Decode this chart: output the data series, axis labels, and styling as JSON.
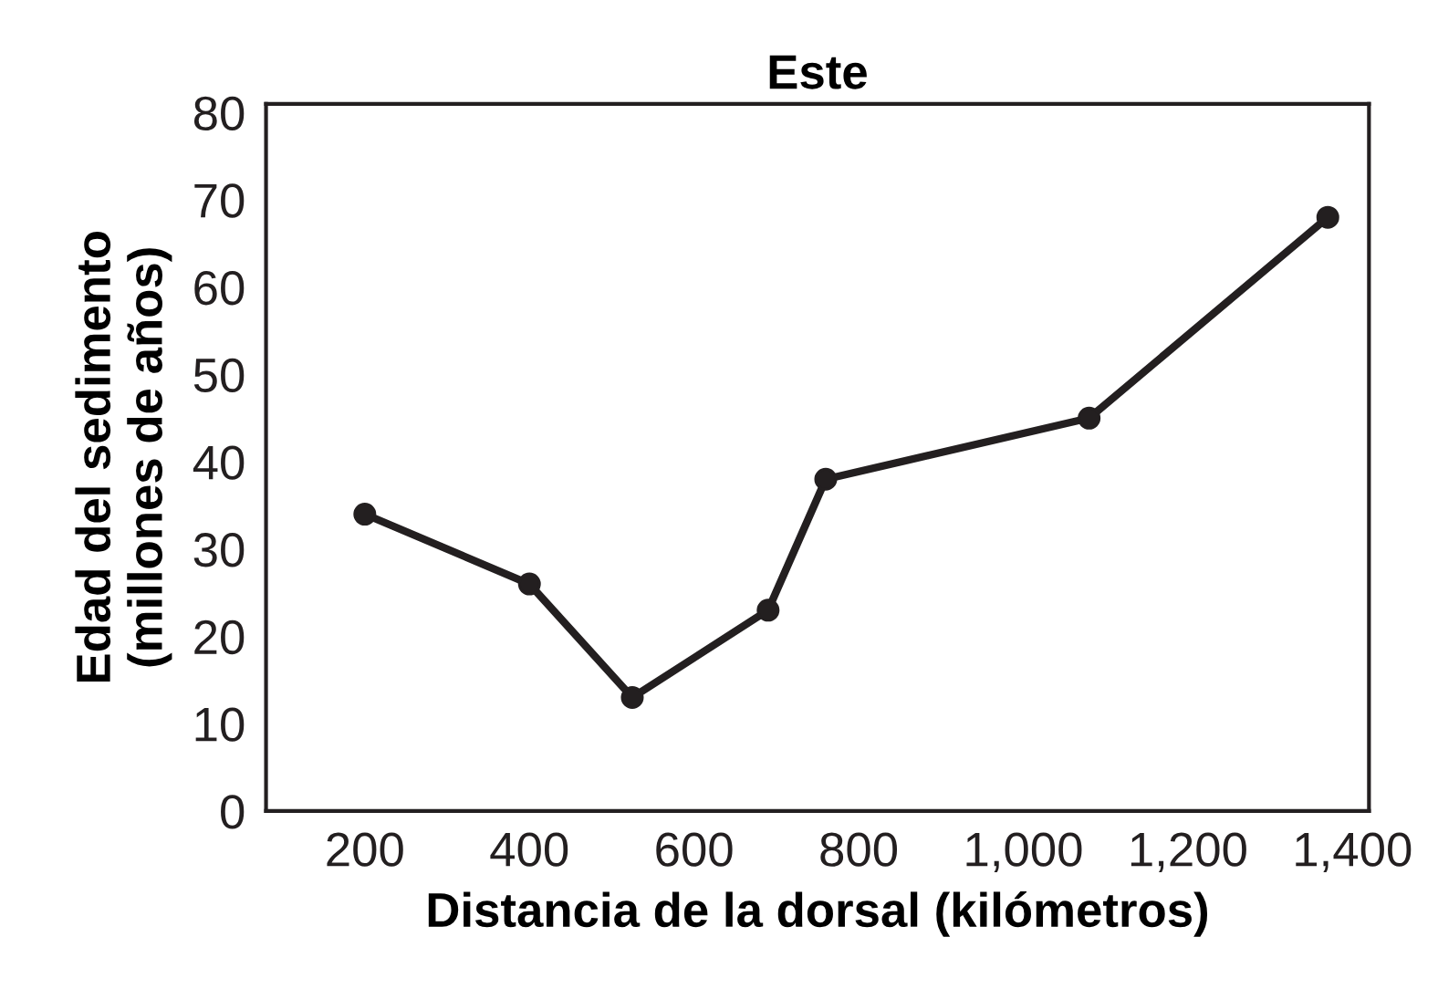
{
  "chart_data": {
    "type": "line",
    "title": "Este",
    "xlabel": "Distancia de la dorsal (kilómetros)",
    "ylabel": "Edad del sedimento\n(millones de años)",
    "x": [
      200,
      400,
      525,
      690,
      760,
      1080,
      1370
    ],
    "series": [
      {
        "color": "#231f20",
        "values": [
          34,
          26,
          13,
          23,
          38,
          45,
          68
        ]
      }
    ],
    "xlim": [
      80,
      1420
    ],
    "xticks": [
      200,
      400,
      600,
      800,
      {
        "value": 1000,
        "label": "1,000"
      },
      {
        "value": 1200,
        "label": "1,200"
      },
      {
        "value": 1400,
        "label": "1,400"
      }
    ],
    "ylim": [
      0,
      81
    ],
    "yticks": [
      0,
      10,
      20,
      30,
      40,
      50,
      60,
      70,
      80
    ],
    "marker": "circle",
    "line_style": "solid",
    "grid": false,
    "legend": false
  }
}
